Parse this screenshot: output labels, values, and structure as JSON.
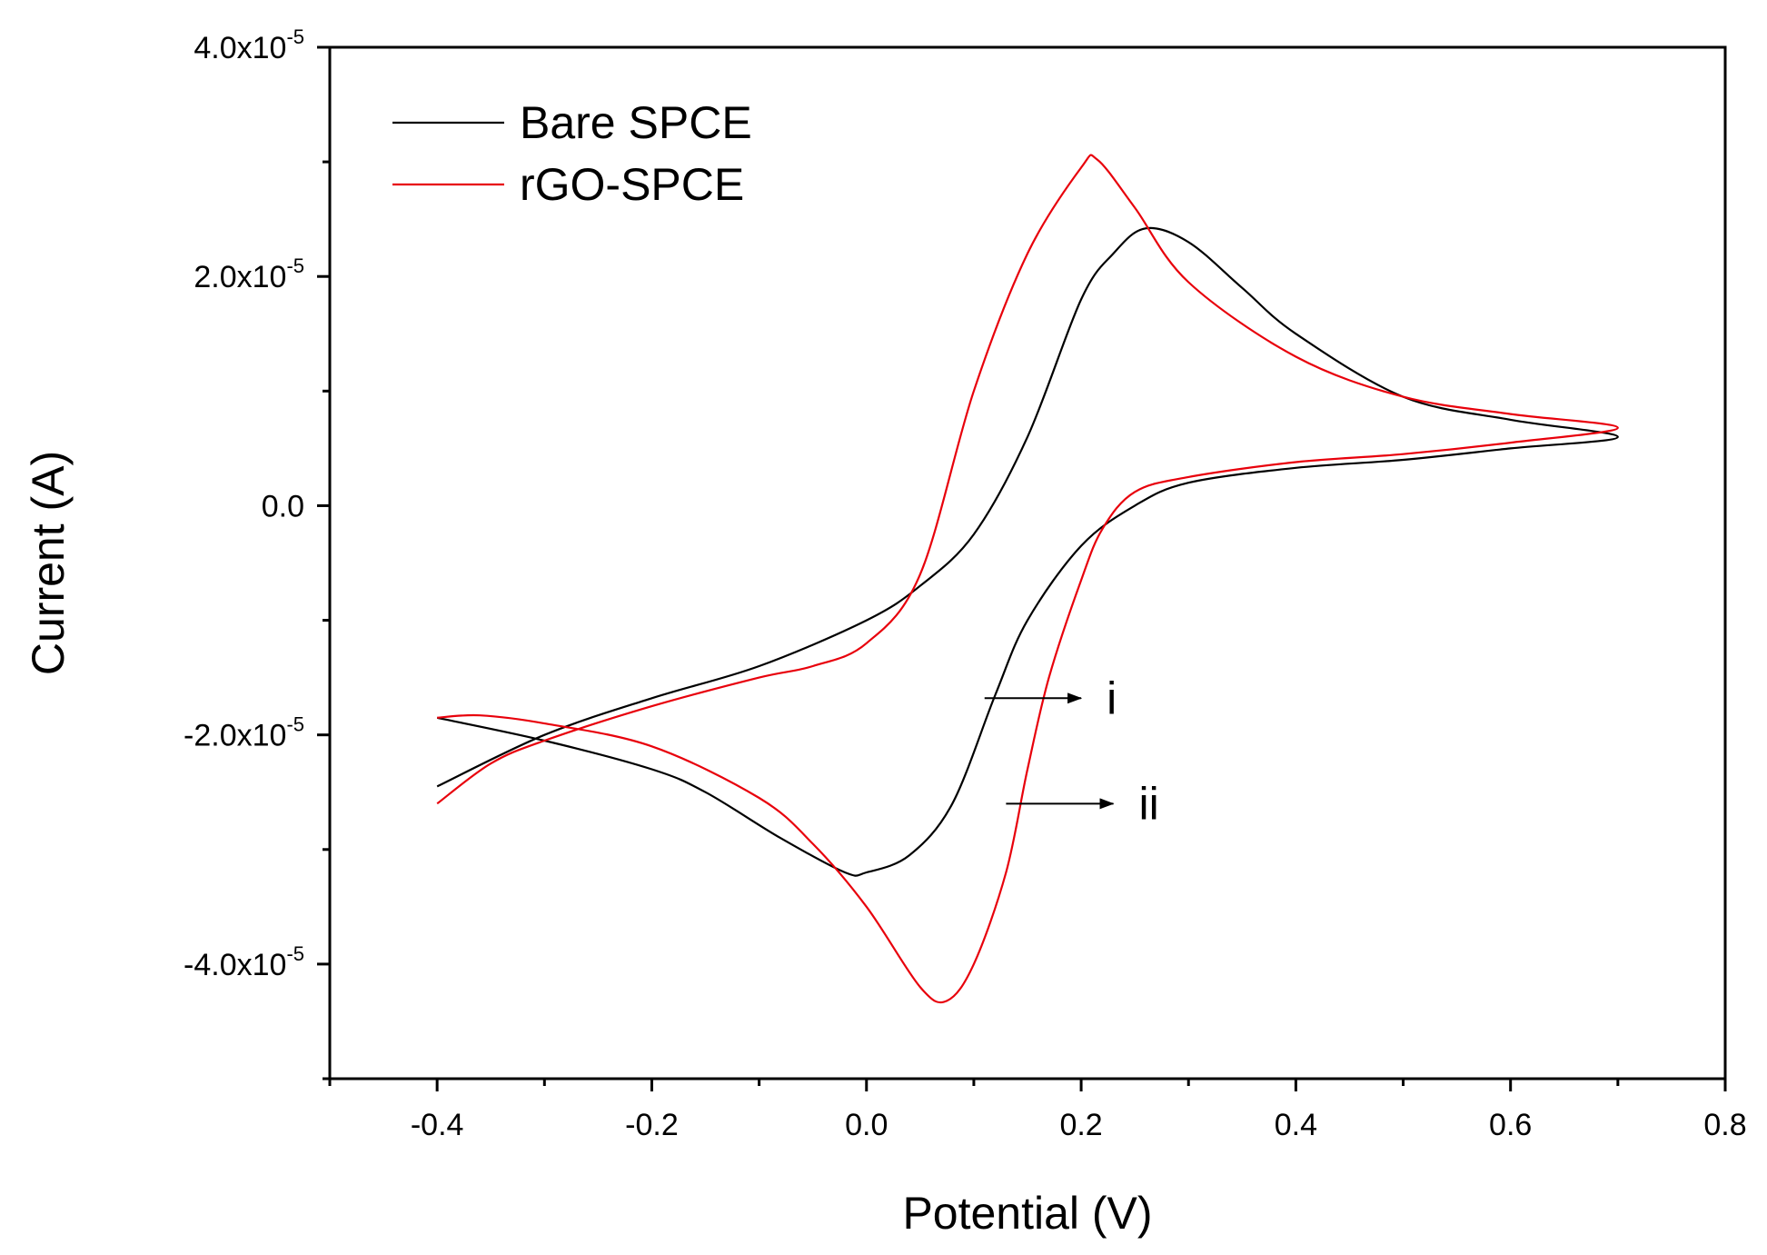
{
  "chart_data": {
    "type": "line",
    "title": "",
    "xlabel": "Potential (V)",
    "ylabel": "Current (A)",
    "xlim": [
      -0.5,
      0.8
    ],
    "ylim": [
      -5e-05,
      4e-05
    ],
    "x_ticks": [
      {
        "value": -0.4,
        "label": "-0.4"
      },
      {
        "value": -0.2,
        "label": "-0.2"
      },
      {
        "value": 0.0,
        "label": "0.0"
      },
      {
        "value": 0.2,
        "label": "0.2"
      },
      {
        "value": 0.4,
        "label": "0.4"
      },
      {
        "value": 0.6,
        "label": "0.6"
      },
      {
        "value": 0.8,
        "label": "0.8"
      }
    ],
    "y_ticks": [
      {
        "value": 4e-05,
        "mantissa": "4.0x10",
        "exponent": "-5"
      },
      {
        "value": 2e-05,
        "mantissa": "2.0x10",
        "exponent": "-5"
      },
      {
        "value": 0.0,
        "mantissa": "0.0",
        "exponent": ""
      },
      {
        "value": -2e-05,
        "mantissa": "-2.0x10",
        "exponent": "-5"
      },
      {
        "value": -4e-05,
        "mantissa": "-4.0x10",
        "exponent": "-5"
      }
    ],
    "grid": false,
    "legend_position": "top-left",
    "series": [
      {
        "name": "Bare SPCE",
        "color": "#000000",
        "x": [
          -0.4,
          -0.3,
          -0.2,
          -0.1,
          0.0,
          0.05,
          0.1,
          0.15,
          0.2,
          0.23,
          0.26,
          0.3,
          0.35,
          0.4,
          0.5,
          0.6,
          0.7,
          0.6,
          0.5,
          0.4,
          0.3,
          0.25,
          0.2,
          0.15,
          0.12,
          0.08,
          0.04,
          0.0,
          -0.02,
          -0.08,
          -0.15,
          -0.2,
          -0.3,
          -0.4
        ],
        "y": [
          -2.45e-05,
          -2e-05,
          -1.68e-05,
          -1.4e-05,
          -1e-05,
          -7e-06,
          -2.5e-06,
          6e-06,
          1.8e-05,
          2.2e-05,
          2.42e-05,
          2.3e-05,
          1.9e-05,
          1.5e-05,
          9.5e-06,
          7.5e-06,
          6e-06,
          5e-06,
          4e-06,
          3.3e-06,
          2e-06,
          0.0,
          -3.5e-06,
          -1e-05,
          -1.65e-05,
          -2.6e-05,
          -3.05e-05,
          -3.2e-05,
          -3.2e-05,
          -2.9e-05,
          -2.5e-05,
          -2.3e-05,
          -2.05e-05,
          -1.85e-05
        ]
      },
      {
        "name": "rGO-SPCE",
        "color": "#e8000b",
        "x": [
          -0.4,
          -0.35,
          -0.3,
          -0.2,
          -0.1,
          -0.05,
          0.0,
          0.05,
          0.1,
          0.15,
          0.2,
          0.215,
          0.25,
          0.3,
          0.4,
          0.5,
          0.6,
          0.7,
          0.6,
          0.5,
          0.4,
          0.3,
          0.25,
          0.22,
          0.2,
          0.17,
          0.15,
          0.13,
          0.1,
          0.075,
          0.05,
          0.0,
          -0.05,
          -0.1,
          -0.2,
          -0.3,
          -0.36,
          -0.4
        ],
        "y": [
          -2.6e-05,
          -2.25e-05,
          -2.05e-05,
          -1.75e-05,
          -1.5e-05,
          -1.4e-05,
          -1.2e-05,
          -6e-06,
          1e-05,
          2.2e-05,
          2.95e-05,
          3.02e-05,
          2.6e-05,
          1.95e-05,
          1.3e-05,
          9.5e-06,
          8e-06,
          6.8e-06,
          5.5e-06,
          4.5e-06,
          3.8e-06,
          2.5e-06,
          1.2e-06,
          -2e-06,
          -6.5e-06,
          -1.5e-05,
          -2.3e-05,
          -3.2e-05,
          -4e-05,
          -4.32e-05,
          -4.2e-05,
          -3.5e-05,
          -2.95e-05,
          -2.55e-05,
          -2.1e-05,
          -1.9e-05,
          -1.83e-05,
          -1.85e-05
        ]
      }
    ],
    "annotations": [
      {
        "label": "i",
        "x_from": 0.11,
        "x_to": 0.2,
        "y": -1.68e-05
      },
      {
        "label": "ii",
        "x_from": 0.13,
        "x_to": 0.23,
        "y": -2.6e-05
      }
    ]
  }
}
